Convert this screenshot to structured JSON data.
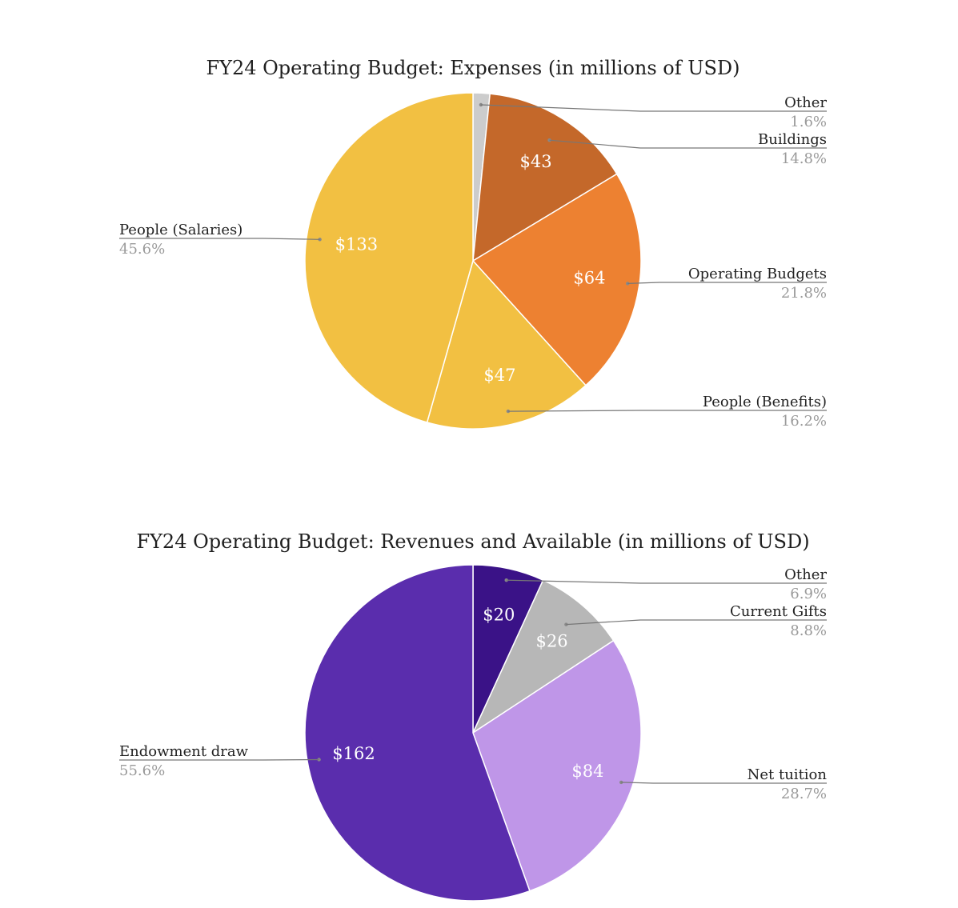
{
  "chart_data": [
    {
      "type": "pie",
      "title": "FY24 Operating Budget: Expenses (in millions of USD)",
      "slices": [
        {
          "name": "Other",
          "value": 4.7,
          "value_label": "",
          "percent_label": "1.6%",
          "color": "#cccccc"
        },
        {
          "name": "Buildings",
          "value": 43,
          "value_label": "$43",
          "percent_label": "14.8%",
          "color": "#c4682a"
        },
        {
          "name": "Operating Budgets",
          "value": 64,
          "value_label": "$64",
          "percent_label": "21.8%",
          "color": "#ed8131"
        },
        {
          "name": "People (Benefits)",
          "value": 47,
          "value_label": "$47",
          "percent_label": "16.2%",
          "color": "#f2c042"
        },
        {
          "name": "People (Salaries)",
          "value": 133,
          "value_label": "$133",
          "percent_label": "45.6%",
          "color": "#f2c042"
        }
      ]
    },
    {
      "type": "pie",
      "title": "FY24 Operating Budget: Revenues and Available (in millions of USD)",
      "slices": [
        {
          "name": "Other",
          "value": 20,
          "value_label": "$20",
          "percent_label": "6.9%",
          "color": "#3a1287"
        },
        {
          "name": "Current Gifts",
          "value": 26,
          "value_label": "$26",
          "percent_label": "8.8%",
          "color": "#b7b7b7"
        },
        {
          "name": "Net tuition",
          "value": 84,
          "value_label": "$84",
          "percent_label": "28.7%",
          "color": "#bf96e8"
        },
        {
          "name": "Endowment draw",
          "value": 162,
          "value_label": "$162",
          "percent_label": "55.6%",
          "color": "#5a2dad"
        }
      ]
    }
  ]
}
